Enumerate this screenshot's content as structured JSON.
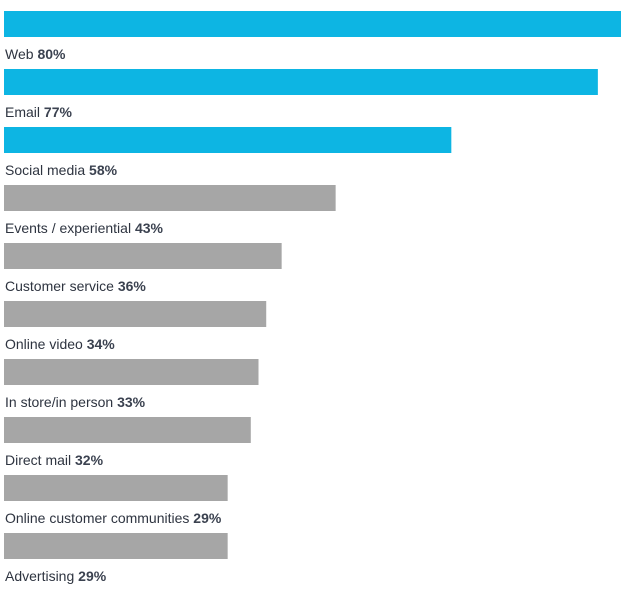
{
  "chart_data": {
    "type": "bar",
    "orientation": "horizontal",
    "xlim": [
      0,
      80
    ],
    "grid": false,
    "highlight_color": "#0db5e3",
    "default_color": "#a6a6a6",
    "categories": [
      "Web",
      "Email",
      "Social media",
      "Events / experiential",
      "Customer service",
      "Online video",
      "In store/in person",
      "Direct mail",
      "Online customer communities",
      "Advertising"
    ],
    "values": [
      80,
      77,
      58,
      43,
      36,
      34,
      33,
      32,
      29,
      29
    ],
    "value_labels": [
      "80%",
      "77%",
      "58%",
      "43%",
      "36%",
      "34%",
      "33%",
      "32%",
      "29%",
      "29%"
    ],
    "highlighted": [
      true,
      true,
      true,
      false,
      false,
      false,
      false,
      false,
      false,
      false
    ]
  }
}
